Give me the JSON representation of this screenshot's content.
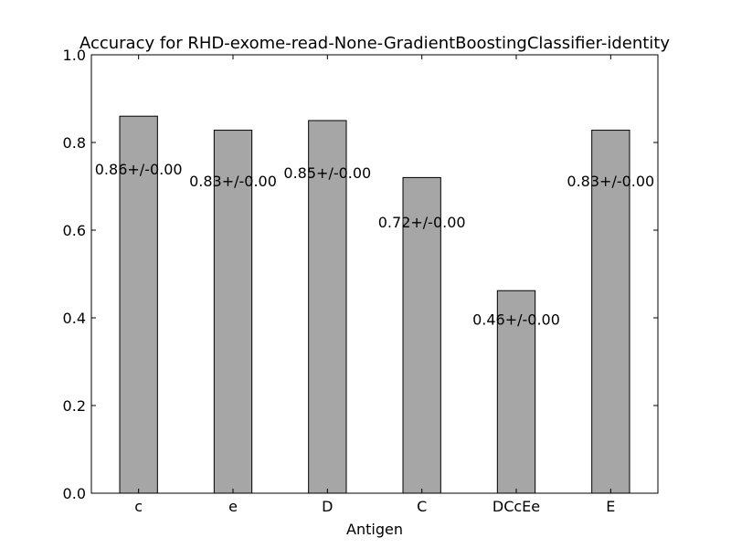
{
  "chart_data": {
    "type": "bar",
    "title": "Accuracy for RHD-exome-read-None-GradientBoostingClassifier-identity",
    "xlabel": "Antigen",
    "ylabel": "",
    "categories": [
      "c",
      "e",
      "D",
      "C",
      "DCcEe",
      "E"
    ],
    "values": [
      0.86,
      0.828,
      0.85,
      0.72,
      0.462,
      0.828
    ],
    "labels": [
      "0.86+/-0.00",
      "0.83+/-0.00",
      "0.85+/-0.00",
      "0.72+/-0.00",
      "0.46+/-0.00",
      "0.83+/-0.00"
    ],
    "ylim": [
      0,
      1.0
    ],
    "yticks": [
      "0.0",
      "0.2",
      "0.4",
      "0.6",
      "0.8",
      "1.0"
    ],
    "grid": false,
    "bar_color": "#a6a6a6",
    "edge_color": "#000000"
  }
}
